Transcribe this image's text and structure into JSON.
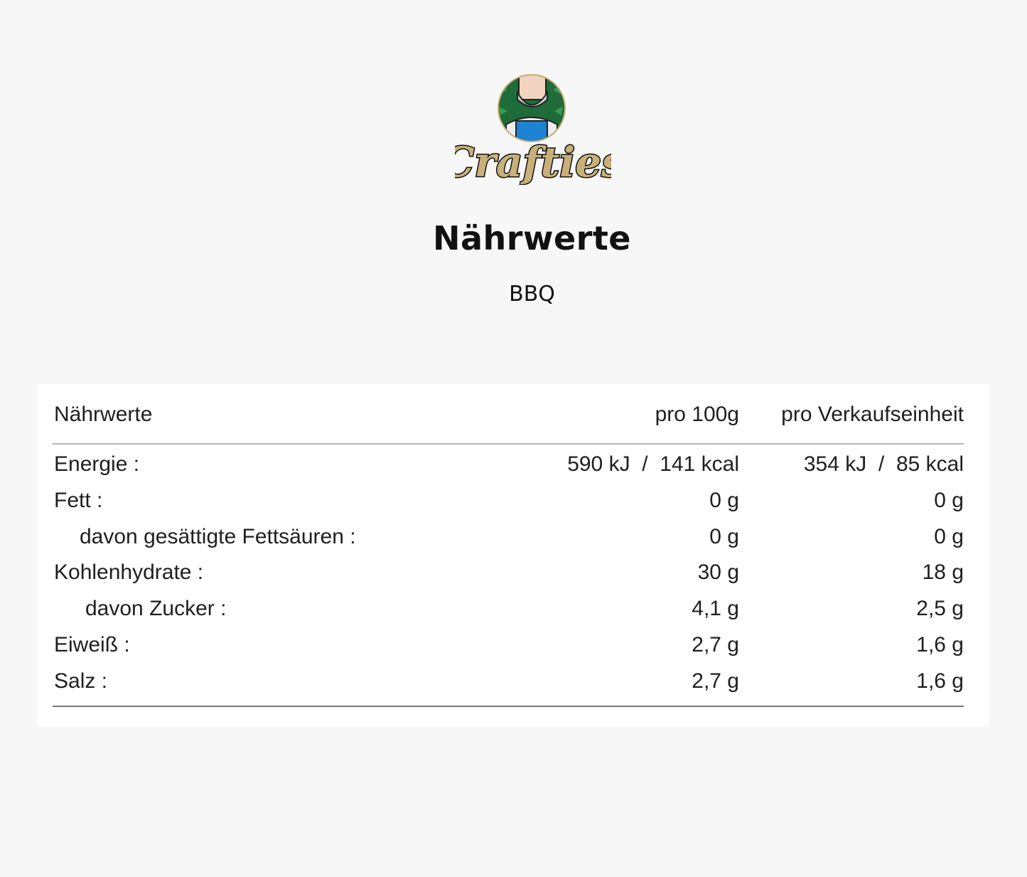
{
  "brand": {
    "logo_text": "Crafties",
    "colors": {
      "gold": "#c9b07a",
      "green": "#1f6b3a",
      "blue": "#1e82d2"
    }
  },
  "title": "Nährwerte",
  "subtitle": "BBQ",
  "table": {
    "headers": [
      "Nährwerte",
      "pro 100g",
      "pro Verkaufseinheit"
    ],
    "rows": [
      {
        "label": "Energie :",
        "per100": "590 kJ  /  141 kcal",
        "perUnit": "354 kJ  /  85 kcal",
        "indent": 0
      },
      {
        "label": "Fett :",
        "per100": "0 g",
        "perUnit": "0 g",
        "indent": 0
      },
      {
        "label": "davon gesättigte Fettsäuren :",
        "per100": "0 g",
        "perUnit": "0 g",
        "indent": 1
      },
      {
        "label": "Kohlenhydrate :",
        "per100": "30 g",
        "perUnit": "18 g",
        "indent": 0
      },
      {
        "label": "davon Zucker :",
        "per100": "4,1 g",
        "perUnit": "2,5 g",
        "indent": 2
      },
      {
        "label": "Eiweiß :",
        "per100": "2,7 g",
        "perUnit": "1,6 g",
        "indent": 0
      },
      {
        "label": "Salz :",
        "per100": "2,7 g",
        "perUnit": "1,6 g",
        "indent": 0
      }
    ]
  }
}
